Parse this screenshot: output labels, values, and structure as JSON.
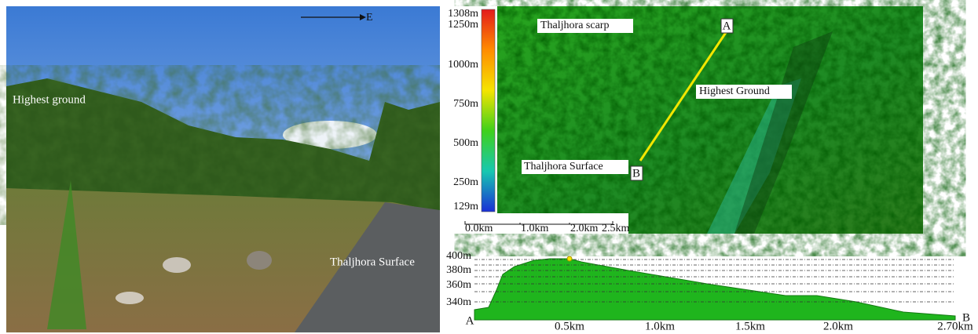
{
  "photo": {
    "direction": "E",
    "highest": "Highest ground",
    "surface": "Thaljhora Surface"
  },
  "map": {
    "legend": [
      "1308m",
      "1250m",
      "1000m",
      "750m",
      "500m",
      "250m",
      "129m"
    ],
    "scarp": "Thaljhora scarp",
    "highest": "Highest Ground",
    "surface": "Thaljhora Surface",
    "point_a": "A",
    "point_b": "B",
    "scale": [
      "0.0km",
      "1.0km",
      "2.0km",
      "2.5km"
    ]
  },
  "profile": {
    "yticks": [
      "400m",
      "380m",
      "360m",
      "340m"
    ],
    "xticks": [
      "0.5km",
      "1.0km",
      "1.5km",
      "2.0km",
      "2.70km"
    ],
    "start": "A",
    "end": "B"
  }
}
